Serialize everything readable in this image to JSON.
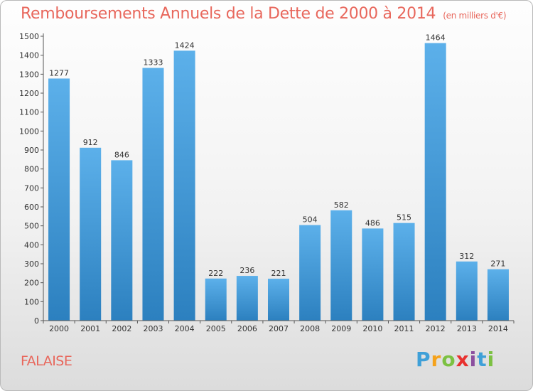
{
  "title": "Remboursements Annuels de la Dette de 2000 à 2014",
  "unit": "(en milliers d'€)",
  "place": "FALAISE",
  "logo": {
    "letters": [
      "P",
      "r",
      "o",
      "x",
      "i",
      "t",
      "i"
    ],
    "colors": [
      "#3fa0d8",
      "#f5a21b",
      "#7cc142",
      "#e8312f",
      "#8c4f9f",
      "#3fa0d8",
      "#7cc142"
    ]
  },
  "chart_data": {
    "type": "bar",
    "categories": [
      "2000",
      "2001",
      "2002",
      "2003",
      "2004",
      "2005",
      "2006",
      "2007",
      "2008",
      "2009",
      "2010",
      "2011",
      "2012",
      "2013",
      "2014"
    ],
    "values": [
      1277,
      912,
      846,
      1333,
      1424,
      222,
      236,
      221,
      504,
      582,
      486,
      515,
      1464,
      312,
      271
    ],
    "yticks": [
      0,
      100,
      200,
      300,
      400,
      500,
      600,
      700,
      800,
      900,
      1000,
      1100,
      1200,
      1300,
      1400,
      1500
    ],
    "ylim": [
      0,
      1500
    ],
    "grid": false,
    "bar_color_top": "#5cb0ea",
    "bar_color_bottom": "#2c80bf"
  }
}
